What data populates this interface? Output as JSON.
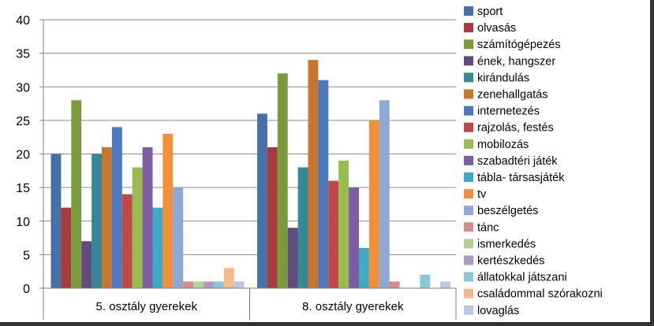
{
  "chart_data": {
    "type": "bar",
    "title": "",
    "xlabel": "",
    "ylabel": "",
    "ylim": [
      0,
      40
    ],
    "ytick_step": 5,
    "grid": true,
    "legend_position": "right",
    "categories": [
      "5. osztály gyerekek",
      "8. osztály gyerekek"
    ],
    "series": [
      {
        "name": "sport",
        "color": "#4472a8",
        "values": [
          20,
          26
        ]
      },
      {
        "name": "olvasás",
        "color": "#a53b3b",
        "values": [
          12,
          21
        ]
      },
      {
        "name": "számítógépezés",
        "color": "#7b9a3c",
        "values": [
          28,
          32
        ]
      },
      {
        "name": "ének, hangszer",
        "color": "#614a7c",
        "values": [
          7,
          9
        ]
      },
      {
        "name": "kirándulás",
        "color": "#368899",
        "values": [
          20,
          18
        ]
      },
      {
        "name": "zenehallgatás",
        "color": "#c7762e",
        "values": [
          21,
          34
        ]
      },
      {
        "name": "internetezés",
        "color": "#4c78c0",
        "values": [
          24,
          31
        ]
      },
      {
        "name": "rajzolás, festés",
        "color": "#c04848",
        "values": [
          14,
          16
        ]
      },
      {
        "name": "mobilozás",
        "color": "#9abb4f",
        "values": [
          18,
          19
        ]
      },
      {
        "name": "szabadtéri játék",
        "color": "#7d5ea3",
        "values": [
          21,
          15
        ]
      },
      {
        "name": "tábla- társasjáték",
        "color": "#40aac6",
        "values": [
          12,
          6
        ]
      },
      {
        "name": "tv",
        "color": "#f28f3a",
        "values": [
          23,
          25
        ]
      },
      {
        "name": "beszélgetés",
        "color": "#8ea8d7",
        "values": [
          15,
          28
        ]
      },
      {
        "name": "tánc",
        "color": "#d88b8b",
        "values": [
          1,
          1
        ]
      },
      {
        "name": "ismerkedés",
        "color": "#b6cf8e",
        "values": [
          1,
          0
        ]
      },
      {
        "name": "kertészkedés",
        "color": "#ab98c3",
        "values": [
          1,
          0
        ]
      },
      {
        "name": "állatokkal játszani",
        "color": "#87c8d9",
        "values": [
          1,
          2
        ]
      },
      {
        "name": "családommal szórakozni",
        "color": "#f7b98a",
        "values": [
          3,
          0
        ]
      },
      {
        "name": "lovaglás",
        "color": "#b9c8e3",
        "values": [
          1,
          1
        ]
      }
    ]
  }
}
